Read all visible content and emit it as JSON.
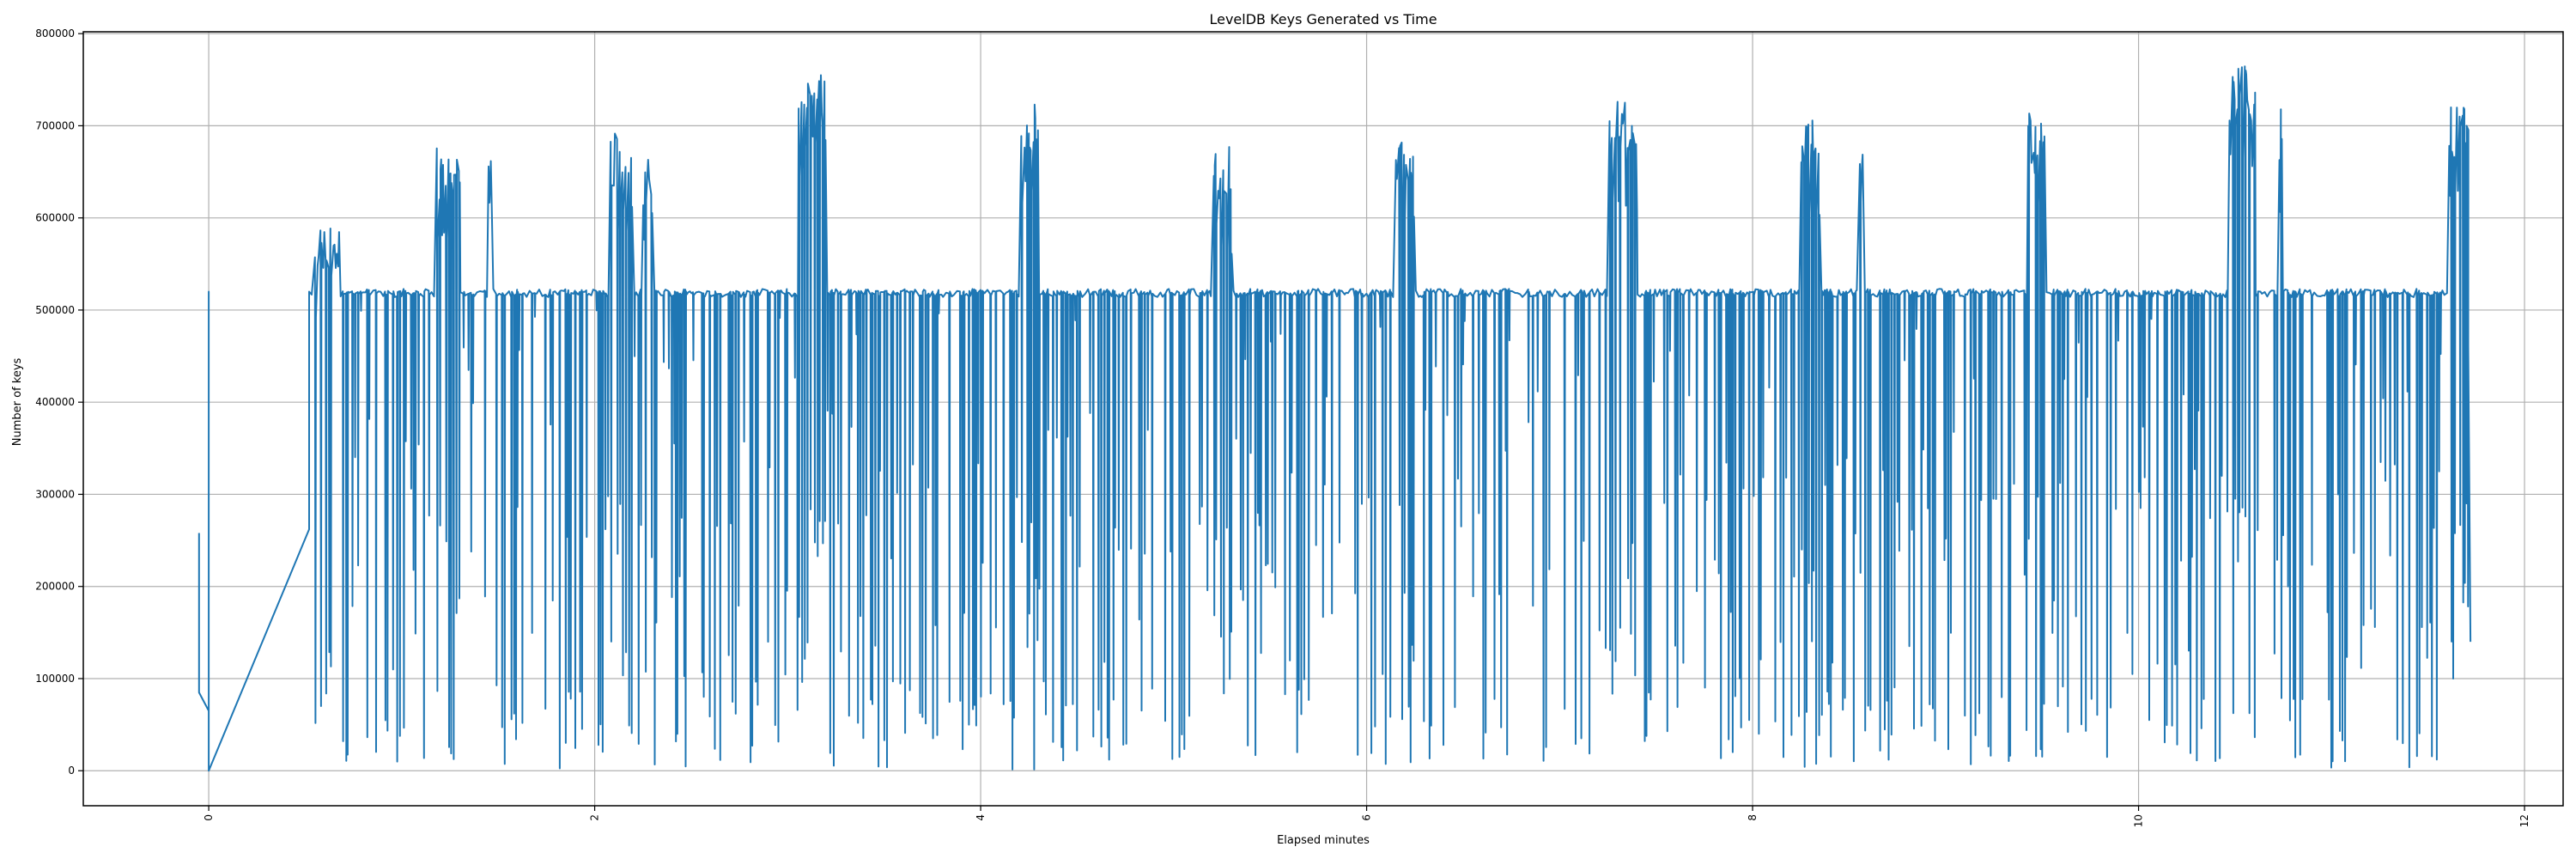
{
  "chart_data": {
    "type": "line",
    "title": "LevelDB Keys Generated vs Time",
    "xlabel": "Elapsed minutes",
    "ylabel": "Number of keys",
    "xlim": [
      -0.65,
      12.2
    ],
    "ylim": [
      -38000,
      802000
    ],
    "xticks": [
      0,
      2,
      4,
      6,
      8,
      10,
      12
    ],
    "xtick_labels": [
      "0",
      "2",
      "4",
      "6",
      "8",
      "10",
      "12"
    ],
    "xtick_rotation": 90,
    "yticks": [
      0,
      100000,
      200000,
      300000,
      400000,
      500000,
      600000,
      700000,
      800000
    ],
    "ytick_labels": [
      "0",
      "100000",
      "200000",
      "300000",
      "400000",
      "500000",
      "600000",
      "700000",
      "800000"
    ],
    "grid": true,
    "legend": null,
    "series": [
      {
        "name": "keys",
        "color": "#1f77b4",
        "baseline_value": 518000,
        "x_range": [
          -0.05,
          11.72
        ],
        "description": "Rapidly oscillating series: steady plateau ~515000-520000 with frequent sharp drops to between 0 and 500000, and periodic bursts up to 600000-765000.",
        "start_points": [
          {
            "x": -0.05,
            "y": 258000
          },
          {
            "x": -0.05,
            "y": 85000
          },
          {
            "x": 0.0,
            "y": 65000
          },
          {
            "x": 0.0,
            "y": 520000
          },
          {
            "x": 0.0,
            "y": 0
          },
          {
            "x": 0.52,
            "y": 262000
          },
          {
            "x": 0.52,
            "y": 520000
          }
        ],
        "bursts": [
          {
            "x_start": 0.55,
            "x_end": 0.68,
            "peak": 598000
          },
          {
            "x_start": 1.18,
            "x_end": 1.3,
            "peak": 677000
          },
          {
            "x_start": 1.45,
            "x_end": 1.47,
            "peak": 665000
          },
          {
            "x_start": 2.07,
            "x_end": 2.2,
            "peak": 693000
          },
          {
            "x_start": 2.25,
            "x_end": 2.3,
            "peak": 670000
          },
          {
            "x_start": 3.05,
            "x_end": 3.2,
            "peak": 755000
          },
          {
            "x_start": 4.2,
            "x_end": 4.3,
            "peak": 725000
          },
          {
            "x_start": 5.2,
            "x_end": 5.3,
            "peak": 678000
          },
          {
            "x_start": 6.15,
            "x_end": 6.25,
            "peak": 695000
          },
          {
            "x_start": 7.25,
            "x_end": 7.4,
            "peak": 727000
          },
          {
            "x_start": 8.25,
            "x_end": 8.35,
            "peak": 717000
          },
          {
            "x_start": 8.55,
            "x_end": 8.57,
            "peak": 703000
          },
          {
            "x_start": 9.42,
            "x_end": 9.52,
            "peak": 723000
          },
          {
            "x_start": 10.47,
            "x_end": 10.6,
            "peak": 765000
          },
          {
            "x_start": 10.72,
            "x_end": 10.74,
            "peak": 718000
          },
          {
            "x_start": 11.6,
            "x_end": 11.72,
            "peak": 722000
          }
        ],
        "end_points": [
          {
            "x": 11.7,
            "y": 700000
          },
          {
            "x": 11.72,
            "y": 140000
          }
        ]
      }
    ]
  }
}
